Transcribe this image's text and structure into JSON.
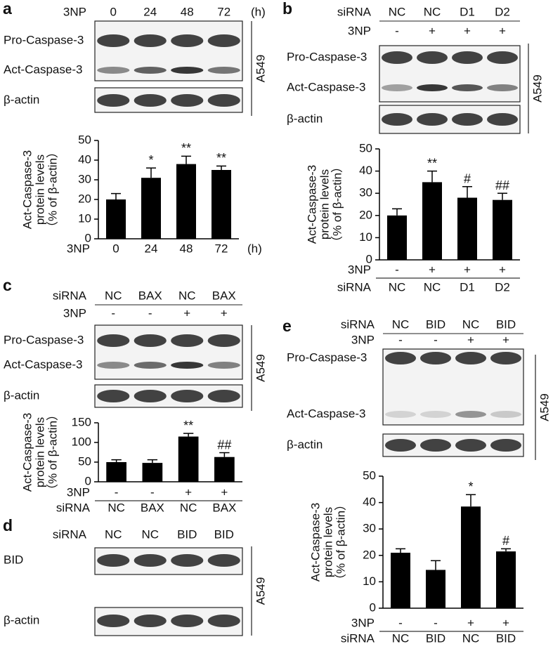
{
  "blots": [
    {
      "panel": "a",
      "header": [
        {
          "label": "3NP",
          "values": [
            "0",
            "24",
            "48",
            "72"
          ],
          "unit": "(h)"
        }
      ],
      "bands": [
        "Pro-Caspase-3",
        "Act-Caspase-3",
        "β-actin"
      ],
      "cell_line": "A549"
    },
    {
      "panel": "b",
      "header": [
        {
          "label": "siRNA",
          "values": [
            "NC",
            "NC",
            "D1",
            "D2"
          ]
        },
        {
          "label": "3NP",
          "values": [
            "-",
            "+",
            "+",
            "+"
          ]
        }
      ],
      "bands": [
        "Pro-Caspase-3",
        "Act-Caspase-3",
        "β-actin"
      ],
      "cell_line": "A549"
    },
    {
      "panel": "c",
      "header": [
        {
          "label": "siRNA",
          "values": [
            "NC",
            "BAX",
            "NC",
            "BAX"
          ]
        },
        {
          "label": "3NP",
          "values": [
            "-",
            "-",
            "+",
            "+"
          ]
        }
      ],
      "bands": [
        "Pro-Caspase-3",
        "Act-Caspase-3",
        "β-actin"
      ],
      "cell_line": "A549"
    },
    {
      "panel": "d",
      "header": [
        {
          "label": "siRNA",
          "values": [
            "NC",
            "NC",
            "BID",
            "BID"
          ]
        }
      ],
      "bands": [
        "BID",
        "β-actin"
      ],
      "cell_line": "A549"
    },
    {
      "panel": "e",
      "header": [
        {
          "label": "siRNA",
          "values": [
            "NC",
            "BID",
            "NC",
            "BID"
          ]
        },
        {
          "label": "3NP",
          "values": [
            "-",
            "-",
            "+",
            "+"
          ]
        }
      ],
      "bands": [
        "Pro-Caspase-3",
        "Act-Caspase-3",
        "β-actin"
      ],
      "cell_line": "A549"
    }
  ],
  "chart_data": [
    {
      "type": "bar",
      "ylabel": [
        "Act-Caspase-3",
        "protein levels",
        "（% of β-actin）"
      ],
      "category_label": "3NP",
      "unit": "(h)",
      "categories": [
        "0",
        "24",
        "48",
        "72"
      ],
      "values": [
        20,
        31,
        38,
        35
      ],
      "errors": [
        3,
        5,
        4,
        2
      ],
      "annotations": [
        null,
        "*",
        "**",
        "**"
      ],
      "ylim": [
        0,
        50
      ],
      "yticks": [
        0,
        10,
        20,
        30,
        40,
        50
      ],
      "color": "#000000"
    },
    {
      "type": "bar",
      "ylabel": [
        "Act-Caspase-3",
        "protein levels",
        "（% of β-actin）"
      ],
      "treatment": {
        "label": "3NP",
        "values": [
          "-",
          "+",
          "+",
          "+"
        ]
      },
      "category_label": "siRNA",
      "categories": [
        "NC",
        "NC",
        "D1",
        "D2"
      ],
      "values": [
        20,
        35,
        28,
        27
      ],
      "errors": [
        3,
        5,
        5,
        3
      ],
      "annotations": [
        null,
        "**",
        "#",
        "##"
      ],
      "ylim": [
        0,
        50
      ],
      "yticks": [
        0,
        10,
        20,
        30,
        40,
        50
      ],
      "color": "#000000"
    },
    {
      "type": "bar",
      "ylabel": [
        "Act-Caspase-3",
        "protein levels",
        "（% of β-actin）"
      ],
      "treatment": {
        "label": "3NP",
        "values": [
          "-",
          "-",
          "+",
          "+"
        ]
      },
      "category_label": "siRNA",
      "categories": [
        "NC",
        "BAX",
        "NC",
        "BAX"
      ],
      "values": [
        50,
        48,
        115,
        63
      ],
      "errors": [
        6,
        8,
        8,
        11
      ],
      "annotations": [
        null,
        null,
        "**",
        "##"
      ],
      "ylim": [
        0,
        150
      ],
      "yticks": [
        0,
        50,
        100,
        150
      ],
      "color": "#000000"
    },
    {
      "type": "bar",
      "ylabel": [
        "Act-Caspase-3",
        "protein levels",
        "（% of β-actin）"
      ],
      "treatment": {
        "label": "3NP",
        "values": [
          "-",
          "-",
          "+",
          "+"
        ]
      },
      "category_label": "siRNA",
      "categories": [
        "NC",
        "BID",
        "NC",
        "BID"
      ],
      "values": [
        21,
        14.5,
        38.5,
        21.5
      ],
      "errors": [
        1.5,
        3.5,
        4.5,
        1
      ],
      "annotations": [
        null,
        null,
        "*",
        "#"
      ],
      "ylim": [
        0,
        50
      ],
      "yticks": [
        0,
        10,
        20,
        30,
        40,
        50
      ],
      "color": "#000000"
    }
  ]
}
